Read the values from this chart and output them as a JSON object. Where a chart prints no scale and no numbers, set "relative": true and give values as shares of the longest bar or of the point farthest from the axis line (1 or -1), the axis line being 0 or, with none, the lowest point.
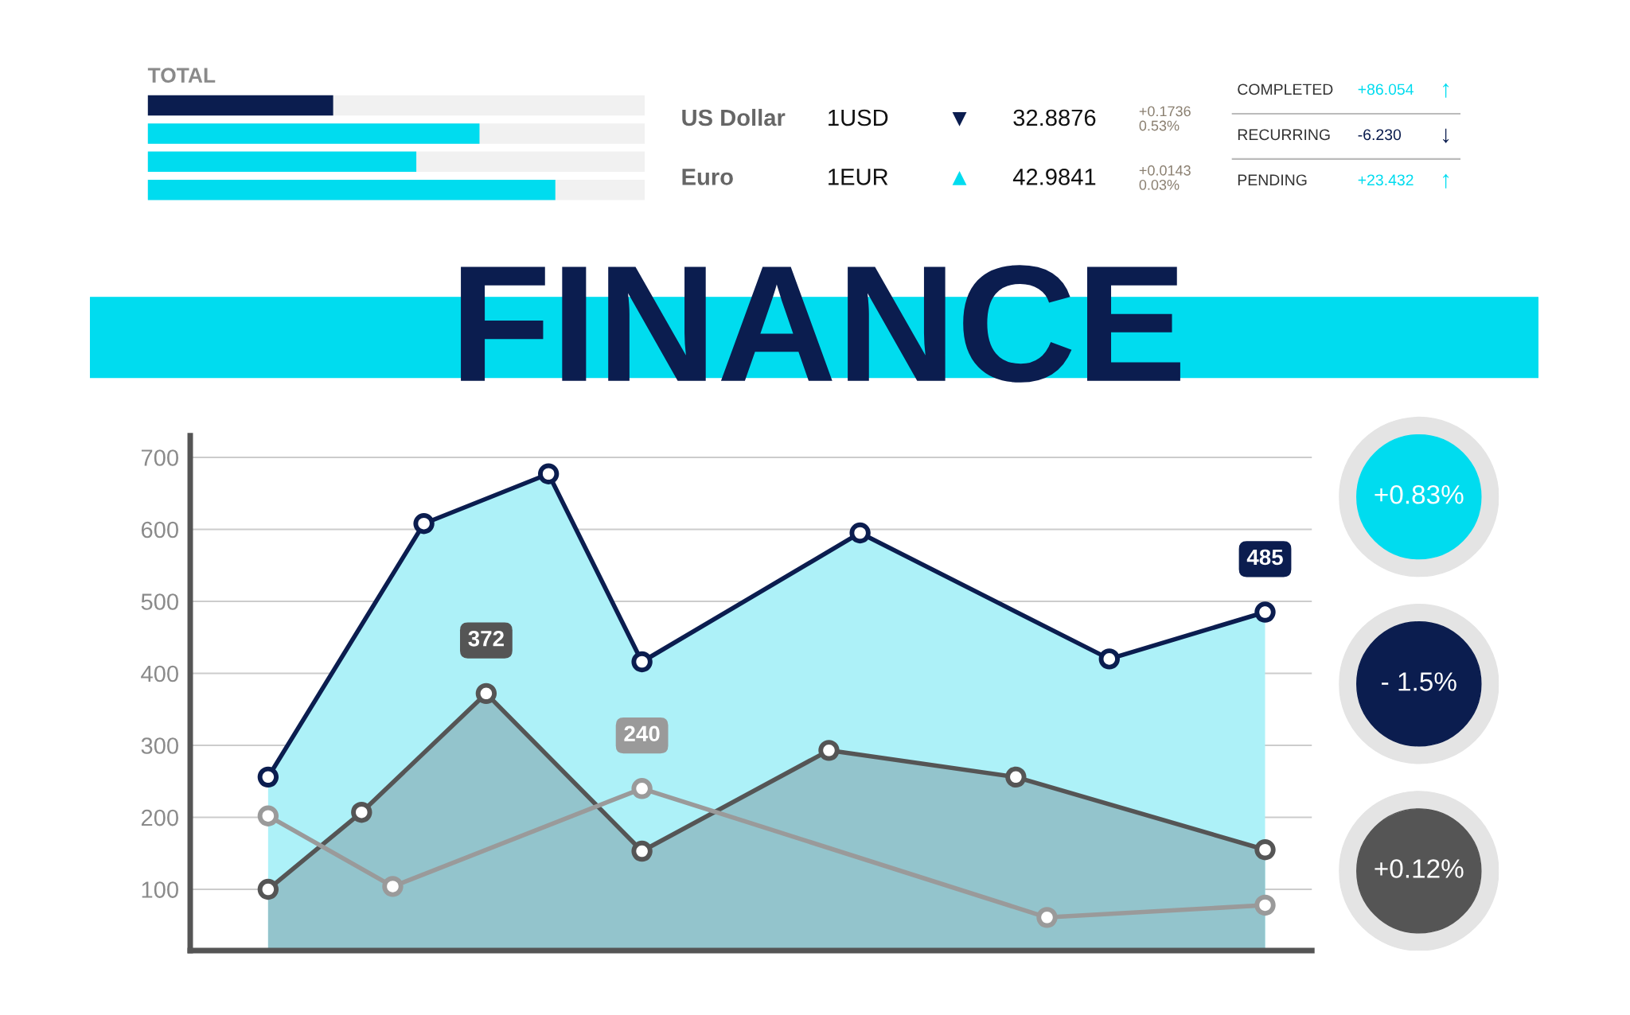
{
  "chart_data": [
    {
      "type": "bar",
      "orientation": "horizontal",
      "relative": true,
      "title": "TOTAL",
      "categories": [
        null,
        null,
        null,
        null
      ],
      "values": [
        0.455,
        0.814,
        0.659,
        1
      ],
      "colors": [
        "#0b1d4f",
        "#00dcef",
        "#00dcef",
        "#00dcef"
      ],
      "tick_labels": false
    },
    {
      "type": "other",
      "cell_labels": [
        [
          "US Dollar",
          "1USD",
          "▼",
          "32.8876",
          "+0.1736\n0.53%"
        ],
        [
          "Euro",
          "1EUR",
          "▲",
          "42.9841",
          "+0.0143\n0.03%"
        ]
      ],
      "colors": [
        "#0b1d4f",
        "#00dcef"
      ]
    },
    {
      "type": "other",
      "cell_labels": [
        [
          "COMPLETED",
          "+86.054",
          "↑"
        ],
        [
          "RECURRING",
          "-6.230",
          "↓"
        ],
        [
          "PENDING",
          "+23.432",
          "↑"
        ]
      ],
      "colors": [
        "#00dcef",
        "#0b1d4f",
        "#00dcef"
      ]
    },
    {
      "type": "line",
      "title": "FINANCE",
      "ylim": [
        15,
        730
      ],
      "yticks": [
        100,
        200,
        300,
        400,
        500,
        600,
        700
      ],
      "tick_labels": "y",
      "grid": "y",
      "marker": "circle",
      "line_style": "solid",
      "colors": [
        "#0b1d4f",
        "#555555",
        null
      ],
      "categories": [
        null,
        null,
        null,
        null,
        null,
        null,
        null,
        null,
        null,
        null,
        null,
        null,
        null,
        null,
        null,
        null,
        null,
        null,
        null,
        null,
        null,
        null,
        null,
        null,
        null,
        null,
        null,
        null,
        null,
        null,
        null,
        null,
        null,
        null,
        null,
        null
      ],
      "series": [
        {
          "type": "area",
          "color": "#adf1f8",
          "values": [
            null,
            null,
            256,
            null,
            null,
            null,
            null,
            608,
            null,
            null,
            null,
            677,
            null,
            null,
            416,
            null,
            null,
            null,
            null,
            null,
            null,
            595,
            null,
            null,
            null,
            null,
            null,
            null,
            null,
            420,
            null,
            null,
            null,
            null,
            485,
            null
          ],
          "value_labels": [
            null,
            null,
            null,
            null,
            null,
            null,
            null,
            null,
            null,
            null,
            null,
            null,
            null,
            null,
            null,
            null,
            null,
            null,
            null,
            null,
            null,
            null,
            null,
            null,
            null,
            null,
            null,
            null,
            null,
            null,
            null,
            null,
            null,
            null,
            "485",
            null
          ]
        },
        {
          "type": "area",
          "color": "#93c4cc",
          "values": [
            null,
            null,
            100,
            null,
            null,
            207,
            null,
            null,
            null,
            372,
            null,
            null,
            null,
            null,
            153,
            null,
            null,
            null,
            null,
            null,
            293,
            null,
            null,
            null,
            null,
            null,
            256,
            null,
            null,
            null,
            null,
            null,
            null,
            null,
            155,
            null
          ],
          "value_labels": [
            null,
            null,
            null,
            null,
            null,
            null,
            null,
            null,
            null,
            "372",
            null,
            null,
            null,
            null,
            null,
            null,
            null,
            null,
            null,
            null,
            null,
            null,
            null,
            null,
            null,
            null,
            null,
            null,
            null,
            null,
            null,
            null,
            null,
            null,
            null,
            null
          ]
        },
        {
          "type": "line",
          "color": "#9a9a9a",
          "values": [
            null,
            null,
            202,
            null,
            null,
            null,
            104,
            null,
            null,
            null,
            null,
            null,
            null,
            null,
            240,
            null,
            null,
            null,
            null,
            null,
            null,
            null,
            null,
            null,
            null,
            null,
            null,
            61,
            null,
            null,
            null,
            null,
            null,
            null,
            78,
            null
          ],
          "value_labels": [
            null,
            null,
            null,
            null,
            null,
            null,
            null,
            null,
            null,
            null,
            null,
            null,
            null,
            null,
            "240",
            null,
            null,
            null,
            null,
            null,
            null,
            null,
            null,
            null,
            null,
            null,
            null,
            null,
            null,
            null,
            null,
            null,
            null,
            null,
            null,
            null
          ]
        }
      ]
    },
    {
      "type": "other",
      "categories": [
        "+0.83%",
        "- 1.5%",
        "+0.12%"
      ],
      "colors": [
        "#00dcef",
        "#0b1d4f",
        "#555555"
      ]
    }
  ]
}
